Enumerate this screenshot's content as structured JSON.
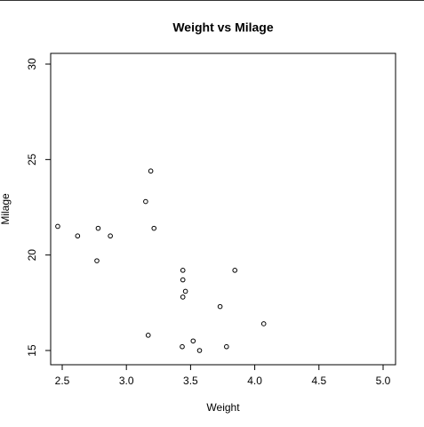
{
  "chart_data": {
    "type": "scatter",
    "title": "Weight vs Milage",
    "x_label": "Weight",
    "y_label": "Milage",
    "x": [
      2.465,
      2.62,
      2.78,
      2.875,
      2.77,
      3.15,
      3.19,
      3.215,
      3.44,
      3.44,
      3.46,
      3.44,
      3.845,
      3.73,
      4.07,
      3.17,
      3.435,
      3.52,
      3.57,
      3.78
    ],
    "values": [
      21.5,
      21.0,
      21.4,
      21.0,
      19.7,
      22.8,
      24.4,
      21.4,
      19.2,
      18.7,
      18.1,
      17.8,
      19.2,
      17.3,
      16.4,
      15.8,
      15.2,
      15.5,
      15.0,
      15.2
    ],
    "color": "#000000",
    "xlim": [
      2.41,
      5.097
    ],
    "ylim": [
      14.255,
      30.56
    ],
    "xticks": [
      2.5,
      {
        "value": 3,
        "label": "3.0"
      },
      3.5,
      {
        "value": 4,
        "label": "4.0"
      },
      4.5,
      {
        "value": 5,
        "label": "5.0"
      }
    ],
    "yticks": [
      15,
      20,
      25,
      30
    ]
  }
}
